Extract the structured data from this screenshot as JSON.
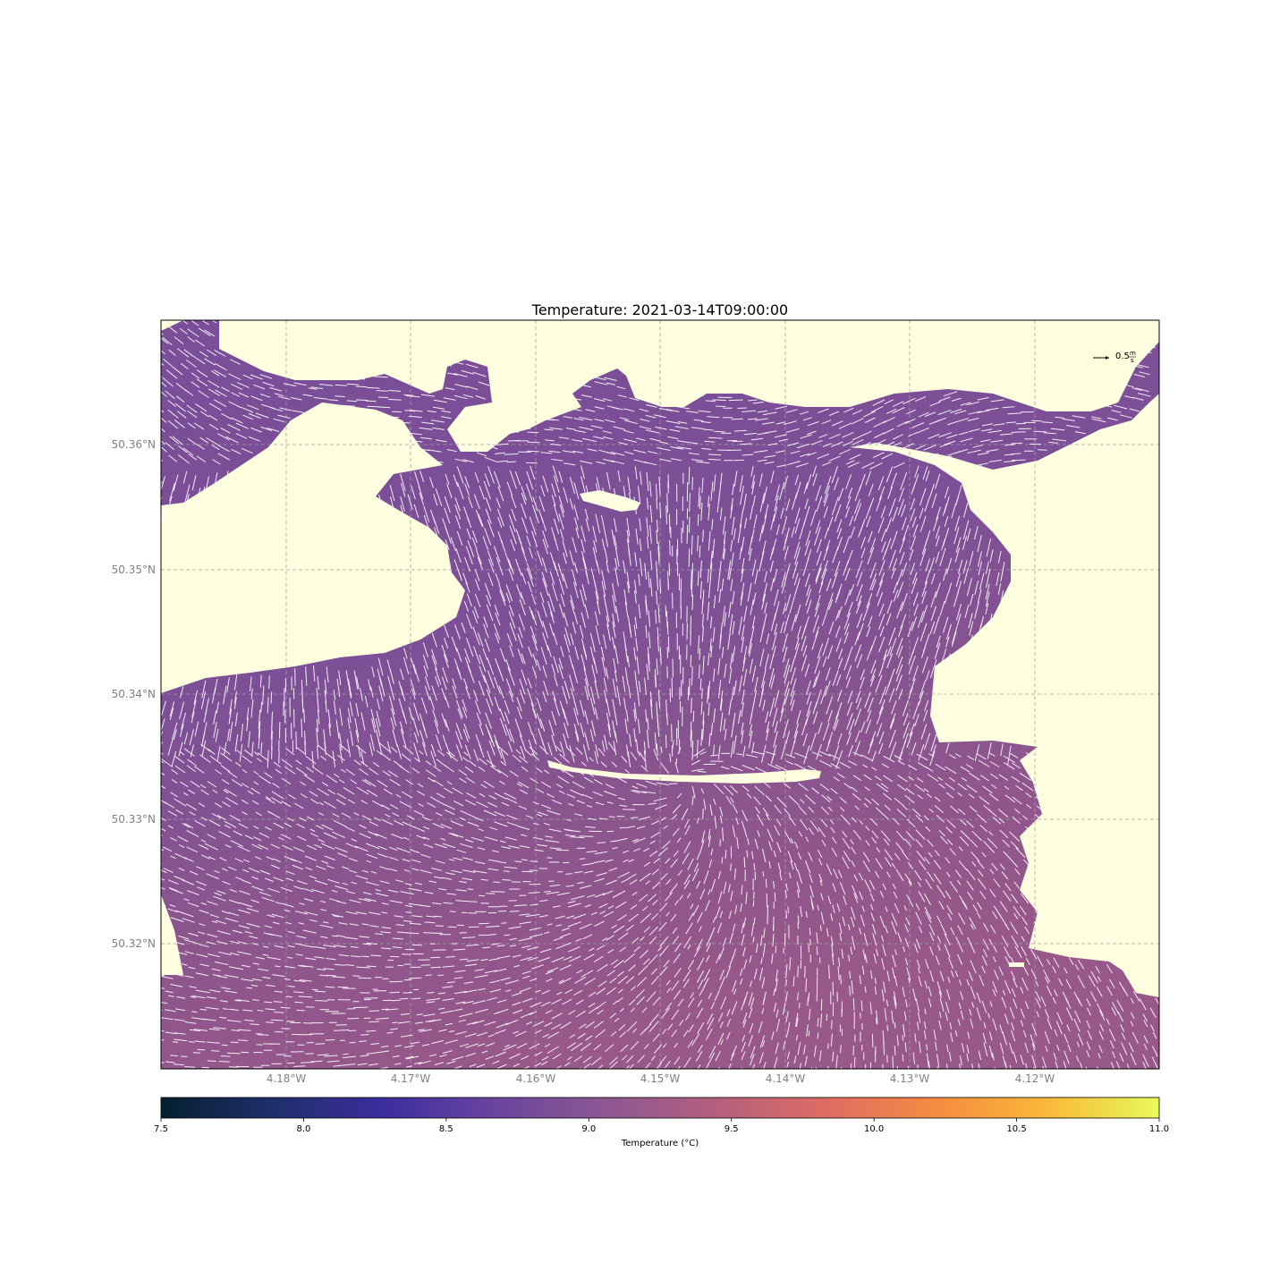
{
  "title": "Temperature: 2021-03-14T09:00:00",
  "colors": {
    "land": "#ffffe0",
    "water_main": "#7c4f96",
    "water_warm": "#955688",
    "water_cool": "#6e4799",
    "grid": "#a0a0a0",
    "arrows": "#ffffff"
  },
  "map": {
    "lon_ticks": [
      "4.18°W",
      "4.17°W",
      "4.16°W",
      "4.15°W",
      "4.14°W",
      "4.13°W",
      "4.12°W"
    ],
    "lat_ticks": [
      "50.36°N",
      "50.35°N",
      "50.34°N",
      "50.33°N",
      "50.32°N"
    ],
    "quiver_key": {
      "value": "0.5",
      "unit_top": "m",
      "unit_bottom": "s"
    }
  },
  "chart_data": {
    "type": "heatmap",
    "title": "Temperature: 2021-03-14T09:00:00",
    "colorbar": {
      "label": "Temperature (°C)",
      "range": [
        7.5,
        11.0
      ],
      "ticks": [
        "7.5",
        "8.0",
        "8.5",
        "9.0",
        "9.5",
        "10.0",
        "10.5",
        "11.0"
      ],
      "colormap": "thermal",
      "stops": [
        "#04202f",
        "#1f2e6b",
        "#3b2d9e",
        "#6a44a0",
        "#8c5792",
        "#b45f7d",
        "#de6c63",
        "#f58c40",
        "#f9b93a",
        "#e8fa5b"
      ]
    },
    "grid": true
  }
}
